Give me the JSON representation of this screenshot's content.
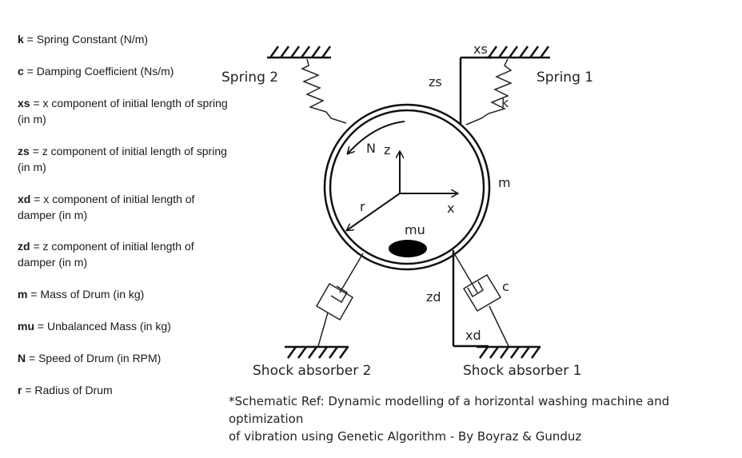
{
  "legend": [
    {
      "symbol": "k",
      "text": " = Spring Constant (N/m)"
    },
    {
      "symbol": "c",
      "text": " = Damping Coefficient (Ns/m)"
    },
    {
      "symbol": "xs",
      "text": " = x component of initial length of spring",
      "text2": "(in m)"
    },
    {
      "symbol": "zs",
      "text": " = z component of initial length of spring",
      "text2": "(in m)"
    },
    {
      "symbol": "xd",
      "text": " = x component of initial length of",
      "text2": "damper (in m)"
    },
    {
      "symbol": "zd",
      "text": " = z component of initial length of",
      "text2": "damper (in m)"
    },
    {
      "symbol": "m",
      "text": " = Mass of Drum (in kg)"
    },
    {
      "symbol": "mu",
      "text": " = Unbalanced Mass (in kg)"
    },
    {
      "symbol": "N",
      "text": " = Speed of Drum (in RPM)"
    },
    {
      "symbol": "r",
      "text": " = Radius of Drum"
    }
  ],
  "diagram": {
    "spring_left_label": "Spring 2",
    "spring_right_label": "Spring 1",
    "xs_label": "xs",
    "zs_label": "zs",
    "k_label": "k",
    "m_label": "m",
    "n_label": "N",
    "z_label": "z",
    "x_label": "x",
    "r_label": "r",
    "mu_label": "mu",
    "c_label": "c",
    "zd_label": "zd",
    "xd_label": "xd",
    "absorber_left_label": "Shock absorber 2",
    "absorber_right_label": "Shock absorber 1"
  },
  "caption": {
    "line1": "*Schematic Ref: Dynamic modelling of a horizontal washing machine and optimization",
    "line2": "of vibration using Genetic Algorithm - By Boyraz & Gunduz"
  }
}
